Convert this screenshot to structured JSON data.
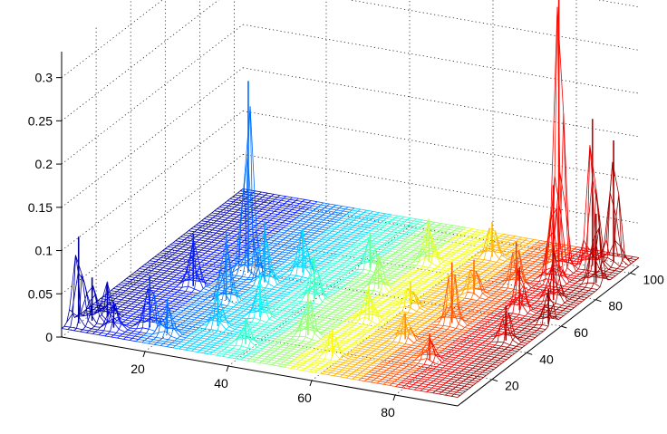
{
  "chart_data": {
    "type": "mesh",
    "title": "",
    "xlabel": "",
    "ylabel": "",
    "zlabel": "",
    "colormap": "jet",
    "grid": true,
    "xlim": [
      0,
      95
    ],
    "ylim": [
      0,
      105
    ],
    "zlim": [
      0,
      0.33
    ],
    "x_ticks": [
      "20",
      "40",
      "60",
      "80"
    ],
    "y_ticks": [
      "20",
      "40",
      "60",
      "80",
      "100"
    ],
    "z_ticks": [
      "0",
      "0.05",
      "0.1",
      "0.15",
      "0.2",
      "0.25",
      "0.3"
    ],
    "x_tick_values": [
      20,
      40,
      60,
      80
    ],
    "y_tick_values": [
      20,
      40,
      60,
      80,
      100
    ],
    "z_tick_values": [
      0,
      0.05,
      0.1,
      0.15,
      0.2,
      0.25,
      0.3
    ],
    "baseline_z": 0.01,
    "peaks": [
      {
        "x": 2,
        "y": 5,
        "z": 0.11
      },
      {
        "x": 4,
        "y": 8,
        "z": 0.06
      },
      {
        "x": 6,
        "y": 12,
        "z": 0.05
      },
      {
        "x": 10,
        "y": 6,
        "z": 0.04
      },
      {
        "x": 15,
        "y": 40,
        "z": 0.07
      },
      {
        "x": 17,
        "y": 10,
        "z": 0.07
      },
      {
        "x": 22,
        "y": 8,
        "z": 0.05
      },
      {
        "x": 22,
        "y": 55,
        "z": 0.23
      },
      {
        "x": 25,
        "y": 35,
        "z": 0.09
      },
      {
        "x": 28,
        "y": 50,
        "z": 0.08
      },
      {
        "x": 30,
        "y": 18,
        "z": 0.05
      },
      {
        "x": 33,
        "y": 60,
        "z": 0.06
      },
      {
        "x": 36,
        "y": 28,
        "z": 0.06
      },
      {
        "x": 40,
        "y": 10,
        "z": 0.04
      },
      {
        "x": 42,
        "y": 45,
        "z": 0.06
      },
      {
        "x": 45,
        "y": 70,
        "z": 0.05
      },
      {
        "x": 50,
        "y": 22,
        "z": 0.06
      },
      {
        "x": 52,
        "y": 58,
        "z": 0.05
      },
      {
        "x": 55,
        "y": 80,
        "z": 0.06
      },
      {
        "x": 58,
        "y": 38,
        "z": 0.05
      },
      {
        "x": 60,
        "y": 12,
        "z": 0.04
      },
      {
        "x": 63,
        "y": 50,
        "z": 0.04
      },
      {
        "x": 66,
        "y": 90,
        "z": 0.05
      },
      {
        "x": 70,
        "y": 30,
        "z": 0.04
      },
      {
        "x": 72,
        "y": 65,
        "z": 0.05
      },
      {
        "x": 75,
        "y": 45,
        "z": 0.08
      },
      {
        "x": 78,
        "y": 75,
        "z": 0.06
      },
      {
        "x": 80,
        "y": 20,
        "z": 0.04
      },
      {
        "x": 82,
        "y": 90,
        "z": 0.33
      },
      {
        "x": 84,
        "y": 82,
        "z": 0.12
      },
      {
        "x": 85,
        "y": 60,
        "z": 0.06
      },
      {
        "x": 88,
        "y": 95,
        "z": 0.18
      },
      {
        "x": 89,
        "y": 70,
        "z": 0.07
      },
      {
        "x": 90,
        "y": 40,
        "z": 0.05
      },
      {
        "x": 91,
        "y": 100,
        "z": 0.15
      },
      {
        "x": 93,
        "y": 85,
        "z": 0.09
      },
      {
        "x": 94,
        "y": 55,
        "z": 0.05
      }
    ]
  }
}
